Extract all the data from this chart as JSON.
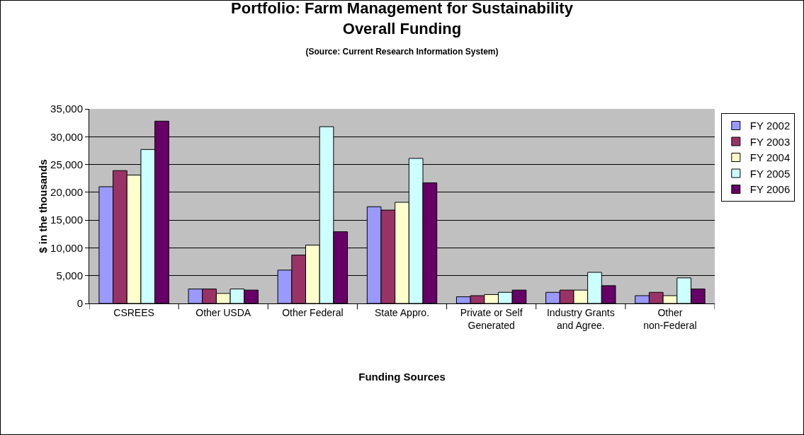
{
  "chart_data": {
    "type": "bar",
    "title": "Portfolio: Farm Management for Sustainability\nOverall Funding",
    "subtitle": "(Source: Current Research Information System)",
    "xlabel": "Funding Sources",
    "ylabel": "$ in the thousands",
    "categories": [
      "CSREES",
      "Other USDA",
      "Other Federal",
      "State Appro.",
      "Private or Self Generated",
      "Industry Grants and Agree.",
      "Other non-Federal"
    ],
    "series": [
      {
        "name": "FY 2002",
        "color": "#9999ff",
        "values": [
          21000,
          2600,
          6000,
          17400,
          1200,
          2000,
          1400
        ]
      },
      {
        "name": "FY 2003",
        "color": "#993366",
        "values": [
          23900,
          2600,
          8700,
          16800,
          1400,
          2400,
          2000
        ]
      },
      {
        "name": "FY 2004",
        "color": "#ffffcc",
        "values": [
          23100,
          1800,
          10500,
          18200,
          1600,
          2400,
          1400
        ]
      },
      {
        "name": "FY 2005",
        "color": "#ccffff",
        "values": [
          27700,
          2600,
          31800,
          26100,
          2000,
          5600,
          4600
        ]
      },
      {
        "name": "FY 2006",
        "color": "#660066",
        "values": [
          32800,
          2400,
          12900,
          21700,
          2400,
          3200,
          2600
        ]
      }
    ],
    "ylim": [
      0,
      35000
    ],
    "yticks": [
      {
        "value": 0,
        "label": "0"
      },
      {
        "value": 5000,
        "label": "5,000"
      },
      {
        "value": 10000,
        "label": "10,000"
      },
      {
        "value": 15000,
        "label": "15,000"
      },
      {
        "value": 20000,
        "label": "20,000"
      },
      {
        "value": 25000,
        "label": "25,000"
      },
      {
        "value": 30000,
        "label": "30,000"
      },
      {
        "value": 35000,
        "label": "35,000"
      }
    ],
    "grid": "y",
    "legend": "right"
  }
}
